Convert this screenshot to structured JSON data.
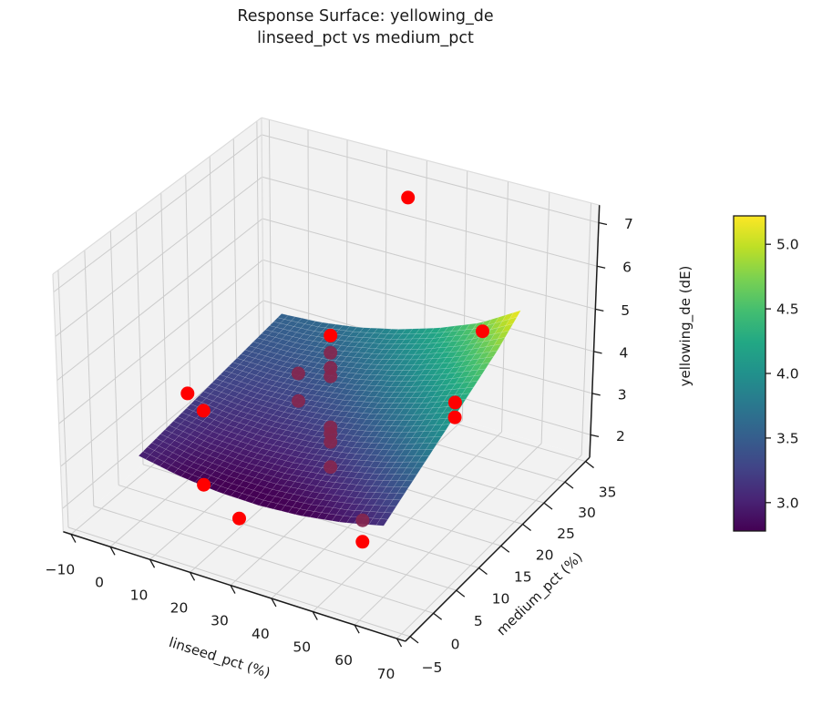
{
  "figure": {
    "title_line1": "Response Surface: yellowing_de",
    "title_line2": "linseed_pct vs medium_pct"
  },
  "chart_data": {
    "type": "surface3d_with_scatter",
    "x_axis": {
      "label": "linseed_pct (%)",
      "ticks": [
        -10,
        0,
        10,
        20,
        30,
        40,
        50,
        60,
        70
      ],
      "range": [
        -12,
        72
      ]
    },
    "y_axis": {
      "label": "medium_pct (%)",
      "ticks": [
        -5,
        0,
        5,
        10,
        15,
        20,
        25,
        30,
        35
      ],
      "range": [
        -6,
        36
      ]
    },
    "z_axis": {
      "label": "yellowing_de (dE)",
      "ticks": [
        2,
        3,
        4,
        5,
        6,
        7
      ],
      "range": [
        1.45,
        7.4
      ]
    },
    "surface": {
      "colormap": "viridis",
      "x_values": [
        0,
        10,
        20,
        30,
        40,
        50,
        60
      ],
      "y_values": [
        0,
        5,
        10,
        15,
        20,
        25,
        30
      ],
      "z_grid": [
        [
          3.0,
          2.82,
          2.72,
          2.7,
          2.76,
          2.9,
          3.12
        ],
        [
          3.09,
          2.95,
          2.89,
          2.91,
          3.01,
          3.19,
          3.45
        ],
        [
          3.18,
          3.08,
          3.06,
          3.12,
          3.26,
          3.48,
          3.78
        ],
        [
          3.27,
          3.21,
          3.23,
          3.33,
          3.51,
          3.77,
          4.11
        ],
        [
          3.36,
          3.34,
          3.4,
          3.54,
          3.76,
          4.06,
          4.44
        ],
        [
          3.45,
          3.47,
          3.57,
          3.75,
          4.01,
          4.35,
          4.77
        ],
        [
          3.54,
          3.6,
          3.74,
          3.96,
          4.26,
          4.64,
          5.2
        ]
      ]
    },
    "scatter": {
      "marker_color": "#ff0000",
      "occluded_color": "#84264e",
      "points": [
        {
          "x": 32,
          "y": 30,
          "z": 7.1,
          "behind_surface": false
        },
        {
          "x": 30,
          "y": 15,
          "z": 5.2,
          "behind_surface": false
        },
        {
          "x": 55,
          "y": 26,
          "z": 4.95,
          "behind_surface": false
        },
        {
          "x": 0,
          "y": 10,
          "z": 3.5,
          "behind_surface": false
        },
        {
          "x": 4,
          "y": 10,
          "z": 3.2,
          "behind_surface": false
        },
        {
          "x": 55,
          "y": 20,
          "z": 3.85,
          "behind_surface": false
        },
        {
          "x": 55,
          "y": 20,
          "z": 3.5,
          "behind_surface": false
        },
        {
          "x": 10,
          "y": 5,
          "z": 2.1,
          "behind_surface": false
        },
        {
          "x": 25,
          "y": 0,
          "z": 2.25,
          "behind_surface": false
        },
        {
          "x": 55,
          "y": 0,
          "z": 2.6,
          "behind_surface": false
        },
        {
          "x": 55,
          "y": 0,
          "z": 3.1,
          "behind_surface": true
        },
        {
          "x": 30,
          "y": 15,
          "z": 4.8,
          "behind_surface": true
        },
        {
          "x": 30,
          "y": 15,
          "z": 4.45,
          "behind_surface": true
        },
        {
          "x": 30,
          "y": 15,
          "z": 4.25,
          "behind_surface": true
        },
        {
          "x": 22,
          "y": 15,
          "z": 4.1,
          "behind_surface": true
        },
        {
          "x": 22,
          "y": 15,
          "z": 3.45,
          "behind_surface": true
        },
        {
          "x": 30,
          "y": 15,
          "z": 3.05,
          "behind_surface": true
        },
        {
          "x": 30,
          "y": 15,
          "z": 2.9,
          "behind_surface": true
        },
        {
          "x": 30,
          "y": 15,
          "z": 2.7,
          "behind_surface": true
        },
        {
          "x": 30,
          "y": 15,
          "z": 2.1,
          "behind_surface": true
        }
      ]
    },
    "colorbar": {
      "vmin": 2.78,
      "vmax": 5.22,
      "ticks": [
        3.0,
        3.5,
        4.0,
        4.5,
        5.0
      ]
    }
  },
  "colors": {
    "pane": "#f2f2f2",
    "grid": "#cccccc",
    "pane_edge": "#dcdcdc",
    "spine": "#1a1a1a",
    "text": "#1a1a1a"
  }
}
